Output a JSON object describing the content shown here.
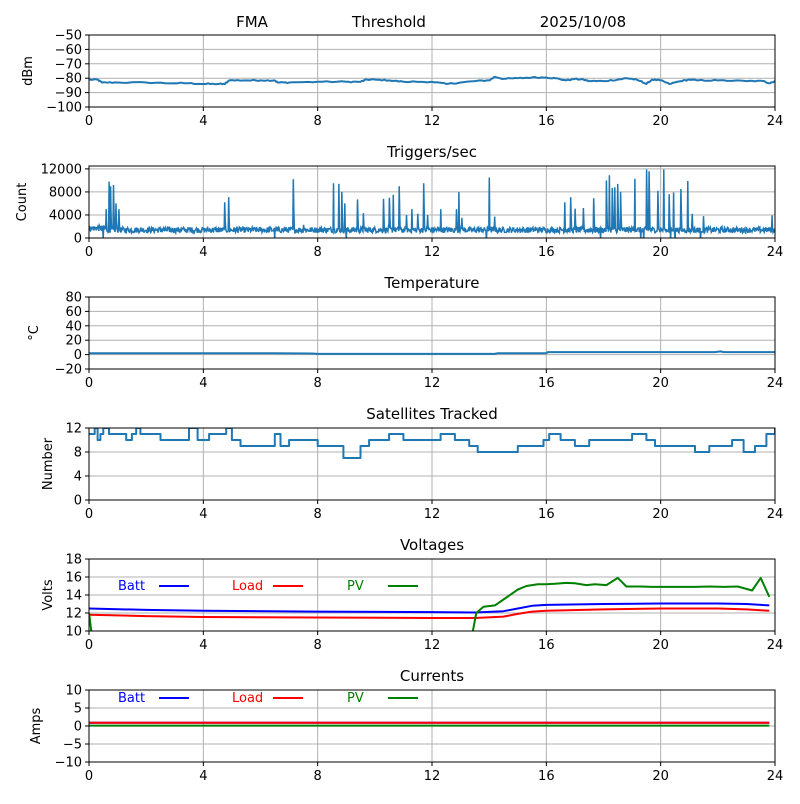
{
  "header": {
    "title_left": "FMA",
    "title_center": "Threshold",
    "title_right": "2025/10/08"
  },
  "colors": {
    "series_default": "#1f77b4",
    "batt": "#0000ff",
    "load": "#ff0000",
    "pv": "#008000",
    "grid": "#b0b0b0"
  },
  "chart_data": [
    {
      "id": "signal",
      "type": "line",
      "title": "",
      "xlabel": "",
      "ylabel": "dBm",
      "xlim": [
        0,
        24
      ],
      "ylim": [
        -100,
        -50
      ],
      "xticks": [
        0,
        4,
        8,
        12,
        16,
        20,
        24
      ],
      "yticks": [
        -100,
        -90,
        -80,
        -70,
        -60,
        -50
      ],
      "ytick_labels": [
        "−100",
        "−90",
        "−80",
        "−70",
        "−60",
        "−50"
      ],
      "grid": true,
      "series": [
        {
          "name": "signal",
          "color_key": "series_default",
          "x": [
            0,
            0.3,
            0.45,
            1,
            2,
            3,
            3.5,
            4,
            4.5,
            4.75,
            4.9,
            5.5,
            6,
            6.5,
            6.6,
            7,
            8,
            9,
            9.5,
            9.7,
            10,
            10.5,
            11,
            12,
            12.5,
            13,
            13.5,
            14,
            14.2,
            14.5,
            15,
            15.5,
            16,
            16.3,
            16.7,
            17,
            17.3,
            17.5,
            18,
            18.5,
            18.8,
            19,
            19.3,
            19.5,
            19.7,
            20,
            20.3,
            20.7,
            21,
            21.3,
            22,
            23,
            23.6,
            23.8,
            24
          ],
          "y": [
            -81,
            -81,
            -83,
            -83,
            -83,
            -83.5,
            -83.5,
            -84,
            -84,
            -84,
            -81.5,
            -81.5,
            -81.5,
            -81.5,
            -83,
            -83,
            -82.5,
            -82.5,
            -82.5,
            -81,
            -81,
            -81.5,
            -82.5,
            -82.5,
            -84,
            -83,
            -82,
            -81.5,
            -79,
            -80.5,
            -80,
            -79.5,
            -79.5,
            -80,
            -81.5,
            -80.5,
            -81,
            -82,
            -82,
            -81,
            -80,
            -80.5,
            -82,
            -84,
            -81,
            -81.5,
            -84,
            -82,
            -81,
            -81.5,
            -81.5,
            -82,
            -82,
            -83.5,
            -82
          ]
        }
      ]
    },
    {
      "id": "triggers",
      "type": "line",
      "title": "Triggers/sec",
      "xlabel": "",
      "ylabel": "Count",
      "xlim": [
        0,
        24
      ],
      "ylim": [
        0,
        12500
      ],
      "xticks": [
        0,
        4,
        8,
        12,
        16,
        20,
        24
      ],
      "yticks": [
        0,
        4000,
        8000,
        12000
      ],
      "ytick_labels": [
        "0",
        "4000",
        "8000",
        "12000"
      ],
      "grid": true,
      "baseline": 1400,
      "noise": 500,
      "spikes": [
        [
          0.7,
          9800
        ],
        [
          0.75,
          9000
        ],
        [
          0.85,
          9200
        ],
        [
          0.95,
          6000
        ],
        [
          1.05,
          5000
        ],
        [
          0.6,
          5000
        ],
        [
          4.75,
          6200
        ],
        [
          4.88,
          7100
        ],
        [
          7.15,
          10200
        ],
        [
          7.5,
          2300
        ],
        [
          8.55,
          9500
        ],
        [
          8.75,
          9400
        ],
        [
          8.85,
          8000
        ],
        [
          8.95,
          6000
        ],
        [
          9.4,
          6700
        ],
        [
          9.6,
          4300
        ],
        [
          10.3,
          6800
        ],
        [
          10.5,
          7000
        ],
        [
          10.65,
          7500
        ],
        [
          10.85,
          9000
        ],
        [
          11.1,
          4000
        ],
        [
          11.3,
          5000
        ],
        [
          11.5,
          4200
        ],
        [
          11.7,
          9500
        ],
        [
          11.85,
          4000
        ],
        [
          12.3,
          5000
        ],
        [
          12.85,
          5000
        ],
        [
          12.95,
          8000
        ],
        [
          13.05,
          3500
        ],
        [
          14.0,
          10500
        ],
        [
          14.2,
          3700
        ],
        [
          16.65,
          6200
        ],
        [
          16.85,
          7100
        ],
        [
          17.0,
          5100
        ],
        [
          17.3,
          5200
        ],
        [
          17.65,
          6900
        ],
        [
          18.1,
          10000
        ],
        [
          18.2,
          10900
        ],
        [
          18.3,
          8700
        ],
        [
          18.4,
          8800
        ],
        [
          18.5,
          9400
        ],
        [
          18.6,
          8000
        ],
        [
          19.1,
          10300
        ],
        [
          19.5,
          11900
        ],
        [
          19.6,
          11600
        ],
        [
          19.9,
          8200
        ],
        [
          20.1,
          11900
        ],
        [
          20.3,
          7600
        ],
        [
          20.45,
          7900
        ],
        [
          20.7,
          8500
        ],
        [
          20.95,
          9900
        ],
        [
          21.1,
          4200
        ],
        [
          21.5,
          3800
        ],
        [
          23.9,
          3900
        ]
      ],
      "dips": [
        0.5,
        6.5,
        9.0,
        13.9,
        17.9,
        19.3,
        19.4,
        20.35,
        20.5,
        21.4
      ],
      "series": [
        {
          "name": "triggers",
          "color_key": "series_default"
        }
      ]
    },
    {
      "id": "temperature",
      "type": "line",
      "title": "Temperature",
      "xlabel": "",
      "ylabel": "°C",
      "xlim": [
        0,
        24
      ],
      "ylim": [
        -20,
        80
      ],
      "xticks": [
        0,
        4,
        8,
        12,
        16,
        20,
        24
      ],
      "yticks": [
        -20,
        0,
        20,
        40,
        60,
        80
      ],
      "ytick_labels": [
        "−20",
        "0",
        "20",
        "40",
        "60",
        "80"
      ],
      "grid": true,
      "series": [
        {
          "name": "temperature",
          "color_key": "series_default",
          "x": [
            0,
            6.5,
            7.8,
            8,
            14.2,
            14.3,
            16,
            16.05,
            21.9,
            22.1,
            22.2,
            24
          ],
          "y": [
            2,
            2,
            1.5,
            1,
            1,
            2,
            2,
            3.5,
            3.5,
            4.5,
            3.5,
            3.5
          ]
        }
      ]
    },
    {
      "id": "satellites",
      "type": "line",
      "title": "Satellites Tracked",
      "xlabel": "",
      "ylabel": "Number",
      "xlim": [
        0,
        24
      ],
      "ylim": [
        0,
        12
      ],
      "xticks": [
        0,
        4,
        8,
        12,
        16,
        20,
        24
      ],
      "yticks": [
        0,
        4,
        8,
        12
      ],
      "ytick_labels": [
        "0",
        "4",
        "8",
        "12"
      ],
      "grid": true,
      "series": [
        {
          "name": "satellites",
          "color_key": "series_default",
          "step": true,
          "x": [
            0,
            0.2,
            0.3,
            0.4,
            0.5,
            0.7,
            0.9,
            1.1,
            1.3,
            1.5,
            1.65,
            1.8,
            2.5,
            2.6,
            3.0,
            3.5,
            3.8,
            4.2,
            4.5,
            4.8,
            5.0,
            5.3,
            6.0,
            6.5,
            6.7,
            7.0,
            7.5,
            8.0,
            8.5,
            8.9,
            9.2,
            9.5,
            9.8,
            10.0,
            10.5,
            11.0,
            11.5,
            12.0,
            12.3,
            12.8,
            13.3,
            13.6,
            14.0,
            14.5,
            15.0,
            15.5,
            15.9,
            16.1,
            16.5,
            17.0,
            17.5,
            17.8,
            18.5,
            19.0,
            19.5,
            19.8,
            20.3,
            20.8,
            21.2,
            21.7,
            22.2,
            22.5,
            22.9,
            23.3,
            23.7,
            24.0
          ],
          "y": [
            11,
            12,
            10,
            11,
            12,
            11,
            11,
            11,
            10,
            11,
            12,
            11,
            10,
            10,
            10,
            12,
            10,
            11,
            11,
            12,
            10,
            9,
            9,
            11,
            9,
            10,
            10,
            9,
            9,
            7,
            7,
            9,
            10,
            10,
            11,
            10,
            10,
            10,
            11,
            10,
            9,
            8,
            8,
            8,
            9,
            9,
            10,
            11,
            10,
            9,
            10,
            10,
            10,
            11,
            10,
            9,
            9,
            9,
            8,
            9,
            9,
            10,
            8,
            9,
            11,
            12
          ]
        }
      ]
    },
    {
      "id": "voltages",
      "type": "line",
      "title": "Voltages",
      "xlabel": "",
      "ylabel": "Volts",
      "xlim": [
        0,
        24
      ],
      "ylim": [
        10,
        18
      ],
      "xticks": [
        0,
        4,
        8,
        12,
        16,
        20,
        24
      ],
      "yticks": [
        10,
        12,
        14,
        16,
        18
      ],
      "ytick_labels": [
        "10",
        "12",
        "14",
        "16",
        "18"
      ],
      "grid": true,
      "legend": [
        "Batt",
        "Load",
        "PV"
      ],
      "legend_placement": "top-left-inline",
      "series": [
        {
          "name": "Batt",
          "color_key": "batt",
          "x": [
            0,
            2,
            4,
            8,
            12,
            13.5,
            14.5,
            15,
            15.5,
            16,
            18,
            20,
            22,
            23,
            23.8
          ],
          "y": [
            12.5,
            12.35,
            12.25,
            12.15,
            12.1,
            12.05,
            12.2,
            12.5,
            12.8,
            12.9,
            13.0,
            13.05,
            13.05,
            13.0,
            12.85
          ]
        },
        {
          "name": "Load",
          "color_key": "load",
          "x": [
            0,
            2,
            4,
            8,
            12,
            13.5,
            14.5,
            15,
            15.5,
            16,
            18,
            20,
            22,
            23,
            23.8
          ],
          "y": [
            11.8,
            11.65,
            11.55,
            11.5,
            11.45,
            11.45,
            11.6,
            11.9,
            12.15,
            12.25,
            12.4,
            12.5,
            12.5,
            12.4,
            12.25
          ]
        },
        {
          "name": "PV",
          "color_key": "pv",
          "x": [
            0,
            0.1,
            13.4,
            13.55,
            13.8,
            14.2,
            14.5,
            15,
            15.3,
            15.7,
            16,
            16.3,
            16.7,
            17,
            17.4,
            17.7,
            18.1,
            18.5,
            18.8,
            19.3,
            19.7,
            20.3,
            20.7,
            21.2,
            21.7,
            22.2,
            22.7,
            23.2,
            23.5,
            23.8
          ],
          "y": [
            12.0,
            9.5,
            9.5,
            12.0,
            12.7,
            12.85,
            13.5,
            14.6,
            15.0,
            15.2,
            15.2,
            15.25,
            15.35,
            15.3,
            15.1,
            15.2,
            15.1,
            15.9,
            14.95,
            14.95,
            14.9,
            14.9,
            14.9,
            14.9,
            14.95,
            14.9,
            14.95,
            14.5,
            15.9,
            13.8
          ]
        }
      ]
    },
    {
      "id": "currents",
      "type": "line",
      "title": "Currents",
      "xlabel": "",
      "ylabel": "Amps",
      "xlim": [
        0,
        24
      ],
      "ylim": [
        -10,
        10
      ],
      "xticks": [
        0,
        4,
        8,
        12,
        16,
        20,
        24
      ],
      "yticks": [
        -10,
        -5,
        0,
        5,
        10
      ],
      "ytick_labels": [
        "−10",
        "−5",
        "0",
        "5",
        "10"
      ],
      "grid": true,
      "legend": [
        "Batt",
        "Load",
        "PV"
      ],
      "legend_placement": "top-left-inline",
      "series": [
        {
          "name": "Batt",
          "color_key": "batt",
          "x": [
            0,
            23.8
          ],
          "y": [
            0.9,
            0.9
          ]
        },
        {
          "name": "Load",
          "color_key": "load",
          "x": [
            0,
            23.8
          ],
          "y": [
            0.9,
            0.9
          ]
        },
        {
          "name": "PV",
          "color_key": "pv",
          "x": [
            0,
            23.8
          ],
          "y": [
            0.1,
            0.1
          ]
        }
      ]
    }
  ]
}
